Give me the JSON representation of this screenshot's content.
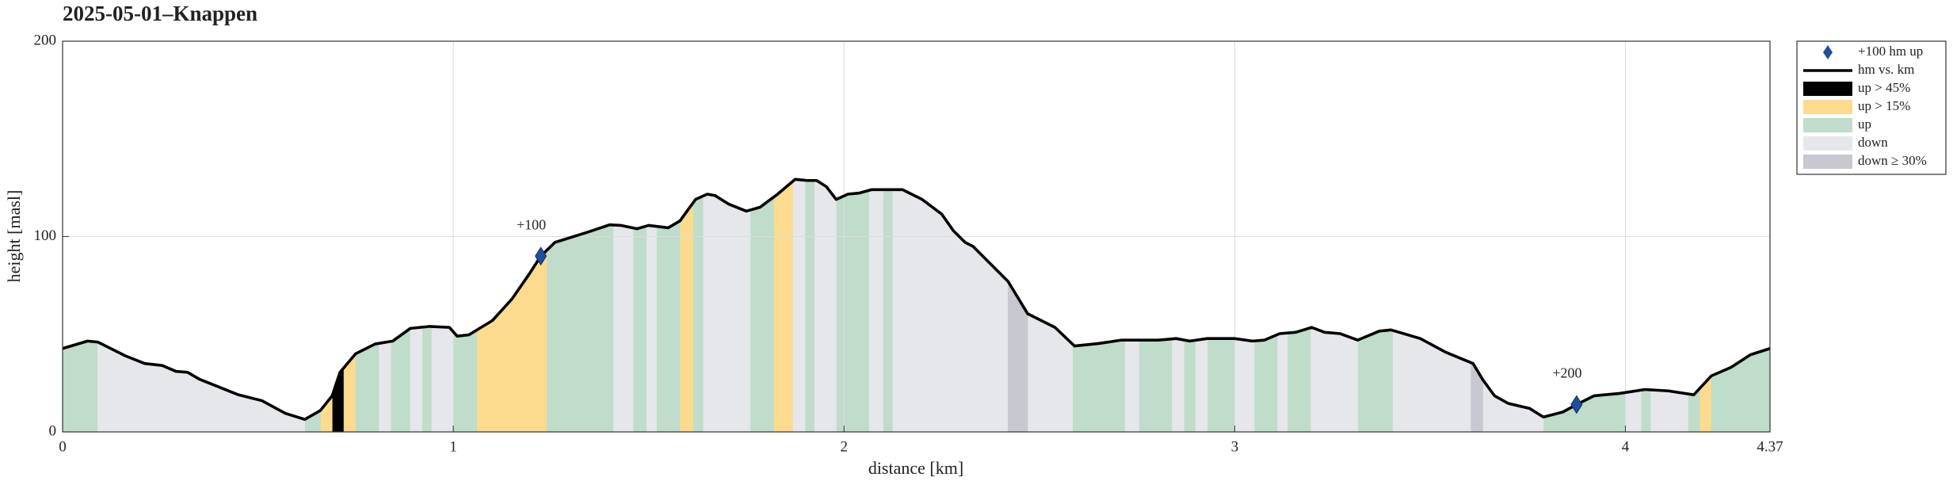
{
  "chart_data": {
    "type": "profile",
    "title": "2025-05-01–Knappen",
    "xlabel": "distance [km]",
    "ylabel": "height [masl]",
    "xlim": [
      0,
      4.37
    ],
    "ylim": [
      0,
      200
    ],
    "xticks": [
      0,
      1,
      2,
      3,
      4,
      4.37
    ],
    "yticks": [
      0,
      100,
      200
    ],
    "grid": true,
    "legend": "outside right",
    "x": [
      0,
      0.064,
      0.09,
      0.16,
      0.21,
      0.255,
      0.29,
      0.32,
      0.35,
      0.4,
      0.45,
      0.51,
      0.57,
      0.62,
      0.66,
      0.69,
      0.71,
      0.75,
      0.8,
      0.845,
      0.89,
      0.94,
      0.99,
      1.01,
      1.04,
      1.1,
      1.15,
      1.195,
      1.224,
      1.26,
      1.34,
      1.4,
      1.43,
      1.47,
      1.5,
      1.55,
      1.58,
      1.62,
      1.65,
      1.67,
      1.705,
      1.75,
      1.785,
      1.83,
      1.875,
      1.905,
      1.93,
      1.955,
      1.98,
      2.01,
      2.04,
      2.07,
      2.15,
      2.2,
      2.25,
      2.28,
      2.31,
      2.33,
      2.38,
      2.42,
      2.47,
      2.54,
      2.57,
      2.59,
      2.65,
      2.71,
      2.805,
      2.85,
      2.885,
      2.93,
      3.0,
      3.045,
      3.076,
      3.115,
      3.156,
      3.197,
      3.23,
      3.27,
      3.315,
      3.37,
      3.4,
      3.475,
      3.54,
      3.61,
      3.635,
      3.665,
      3.7,
      3.755,
      3.79,
      3.84,
      3.875,
      3.92,
      3.985,
      4.05,
      4.11,
      4.175,
      4.22,
      4.27,
      4.32,
      4.37
    ],
    "series": [
      {
        "name": "hm vs. km",
        "color": "#000000",
        "values": [
          42.7,
          46.5,
          46,
          39,
          35,
          34,
          31,
          30.5,
          27,
          23,
          19,
          16,
          9.5,
          6.4,
          11,
          18.5,
          30.5,
          40,
          45,
          46.5,
          53,
          54,
          53.5,
          49,
          49.7,
          57,
          68,
          81,
          90,
          97,
          102,
          106,
          105.7,
          104,
          105.7,
          104.5,
          108,
          119,
          121.7,
          121,
          116.6,
          113,
          115,
          121.7,
          129.3,
          128.7,
          128.7,
          125.5,
          119,
          121.7,
          122.3,
          124,
          124,
          119,
          111.5,
          103,
          97,
          95,
          85,
          77,
          60.5,
          53.5,
          47.8,
          44,
          45.2,
          47,
          47,
          47.8,
          46.5,
          47.8,
          47.8,
          46.5,
          47,
          50.3,
          51,
          53.5,
          51,
          50.3,
          47,
          51.6,
          52.2,
          47.8,
          40.8,
          35,
          26.7,
          18.5,
          14.6,
          12,
          7.6,
          10.2,
          14,
          18.5,
          19.7,
          21.7,
          21,
          19,
          28.7,
          33,
          39.5,
          42.7
        ]
      }
    ],
    "markers": {
      "name": "+100 hm up",
      "color": "#1f4e9c",
      "x": [
        1.224,
        3.875
      ],
      "values": [
        90,
        14
      ],
      "labels": [
        "+100",
        "+200"
      ]
    },
    "bands": [
      {
        "name": "up > 45%",
        "color": "#000000",
        "ranges": [
          [
            0.69,
            0.72
          ]
        ]
      },
      {
        "name": "up > 15%",
        "color": "#fcdb8e",
        "ranges": [
          [
            0.66,
            0.69
          ],
          [
            0.72,
            0.75
          ],
          [
            1.06,
            1.24
          ],
          [
            1.58,
            1.615
          ],
          [
            1.82,
            1.87
          ],
          [
            4.19,
            4.22
          ]
        ]
      },
      {
        "name": "up",
        "color": "#c0dccb",
        "ranges": [
          [
            0,
            0.09
          ],
          [
            0.62,
            0.66
          ],
          [
            0.75,
            0.81
          ],
          [
            0.84,
            0.89
          ],
          [
            0.92,
            0.945
          ],
          [
            1.0,
            1.06
          ],
          [
            1.24,
            1.41
          ],
          [
            1.46,
            1.495
          ],
          [
            1.52,
            1.58
          ],
          [
            1.615,
            1.64
          ],
          [
            1.76,
            1.82
          ],
          [
            1.9,
            1.925
          ],
          [
            1.98,
            2.065
          ],
          [
            2.1,
            2.125
          ],
          [
            2.585,
            2.72
          ],
          [
            2.755,
            2.84
          ],
          [
            2.87,
            2.9
          ],
          [
            2.93,
            3.0
          ],
          [
            3.05,
            3.11
          ],
          [
            3.135,
            3.195
          ],
          [
            3.315,
            3.405
          ],
          [
            3.79,
            4.0
          ],
          [
            4.04,
            4.065
          ],
          [
            4.16,
            4.19
          ],
          [
            4.22,
            4.37
          ]
        ]
      },
      {
        "name": "down",
        "color": "#e6e7ea",
        "ranges": [
          [
            0.09,
            0.62
          ],
          [
            0.81,
            0.84
          ],
          [
            0.89,
            0.92
          ],
          [
            0.945,
            1.0
          ],
          [
            1.41,
            1.46
          ],
          [
            1.495,
            1.52
          ],
          [
            1.64,
            1.76
          ],
          [
            1.87,
            1.9
          ],
          [
            1.925,
            1.98
          ],
          [
            2.065,
            2.1
          ],
          [
            2.125,
            2.42
          ],
          [
            2.47,
            2.585
          ],
          [
            2.72,
            2.755
          ],
          [
            2.84,
            2.87
          ],
          [
            2.9,
            2.93
          ],
          [
            3.0,
            3.05
          ],
          [
            3.11,
            3.135
          ],
          [
            3.195,
            3.315
          ],
          [
            3.405,
            3.605
          ],
          [
            3.635,
            3.79
          ],
          [
            4.0,
            4.04
          ],
          [
            4.065,
            4.16
          ]
        ]
      },
      {
        "name": "down ≥ 30%",
        "color": "#c7c8d0",
        "ranges": [
          [
            2.42,
            2.47
          ],
          [
            3.605,
            3.635
          ]
        ]
      }
    ]
  }
}
